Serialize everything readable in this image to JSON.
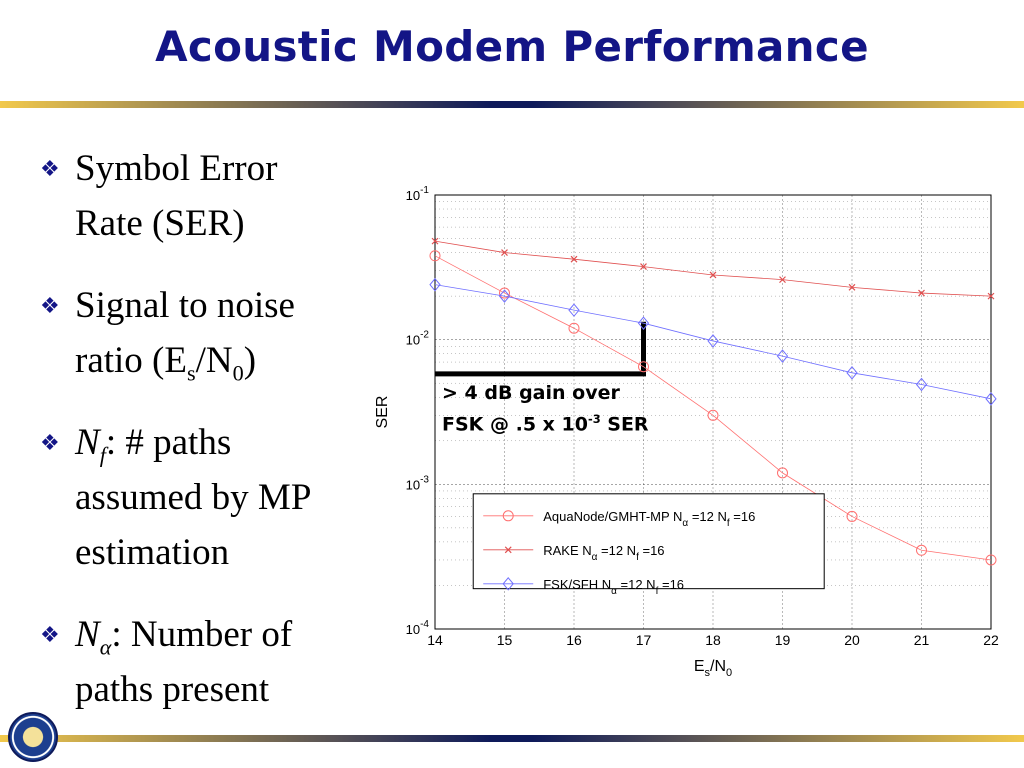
{
  "slide": {
    "title": "Acoustic Modem Performance",
    "bullets": [
      {
        "line1": "Symbol Error",
        "line2": "Rate (SER)"
      },
      {
        "line1": "Signal to noise",
        "line2_a": "ratio (E",
        "line2_sub1": "s",
        "line2_b": "/N",
        "line2_sub2": "0",
        "line2_c": ")"
      },
      {
        "italic": "N",
        "italic_sub": "f",
        "line1": ": # paths",
        "line2": "assumed by MP",
        "line3": "estimation"
      },
      {
        "italic": "N",
        "greek_sub": "α",
        "line1": ": Number of",
        "line2": "paths present"
      }
    ],
    "bullet_icon": "diamond-bullet-icon",
    "logo": "university-seal-logo",
    "colors": {
      "title": "#131586",
      "rule_gold": "#f2c94c",
      "rule_navy": "#0e1a5a"
    }
  },
  "annotation": {
    "line1": "> 4 dB gain over",
    "line2_a": "FSK @ .5 x 10",
    "line2_sup": "-3",
    "line2_b": " SER"
  },
  "chart_data": {
    "type": "line",
    "x": [
      14,
      15,
      16,
      17,
      18,
      19,
      20,
      21,
      22
    ],
    "xlim": [
      14,
      22
    ],
    "ylim": [
      0.0001,
      0.1
    ],
    "yscale": "log",
    "xlabel": "E",
    "xlabel_sub1": "s",
    "xlabel_mid": "/N",
    "xlabel_sub2": "0",
    "ylabel": "SER",
    "xticks": [
      "14",
      "15",
      "16",
      "17",
      "18",
      "19",
      "20",
      "21",
      "22"
    ],
    "yticks": [
      {
        "value": 0.1,
        "base": "10",
        "exp": "-1"
      },
      {
        "value": 0.01,
        "base": "10",
        "exp": "-2"
      },
      {
        "value": 0.001,
        "base": "10",
        "exp": "-3"
      },
      {
        "value": 0.0001,
        "base": "10",
        "exp": "-4"
      }
    ],
    "grid": true,
    "legend_position": "bottom-right",
    "series": [
      {
        "name": "AquaNode/GMHT-MP N",
        "name_sub": "α",
        "name_rest": " =12 N",
        "name_sub2": "f",
        "name_end": " =16",
        "marker": "circle",
        "color": "#ff7070",
        "values": [
          0.038,
          0.021,
          0.012,
          0.0065,
          0.003,
          0.0012,
          0.0006,
          0.00035,
          0.0003
        ]
      },
      {
        "name": "RAKE N",
        "name_sub": "α",
        "name_rest": " =12 N",
        "name_sub2": "f",
        "name_end": " =16",
        "marker": "x",
        "color": "#e05050",
        "values": [
          0.048,
          0.04,
          0.036,
          0.032,
          0.028,
          0.026,
          0.023,
          0.021,
          0.02
        ]
      },
      {
        "name": "FSK/SFH N",
        "name_sub": "α",
        "name_rest": " =12 N",
        "name_sub2": "f",
        "name_end": " =16",
        "marker": "diamond",
        "color": "#7070ff",
        "values": [
          0.024,
          0.02,
          0.016,
          0.013,
          0.0098,
          0.0077,
          0.0059,
          0.0049,
          0.0039
        ]
      }
    ],
    "threshold_line": {
      "x_start": 14,
      "x_end": 17,
      "y": 0.0058,
      "y_top": 0.0133
    }
  }
}
